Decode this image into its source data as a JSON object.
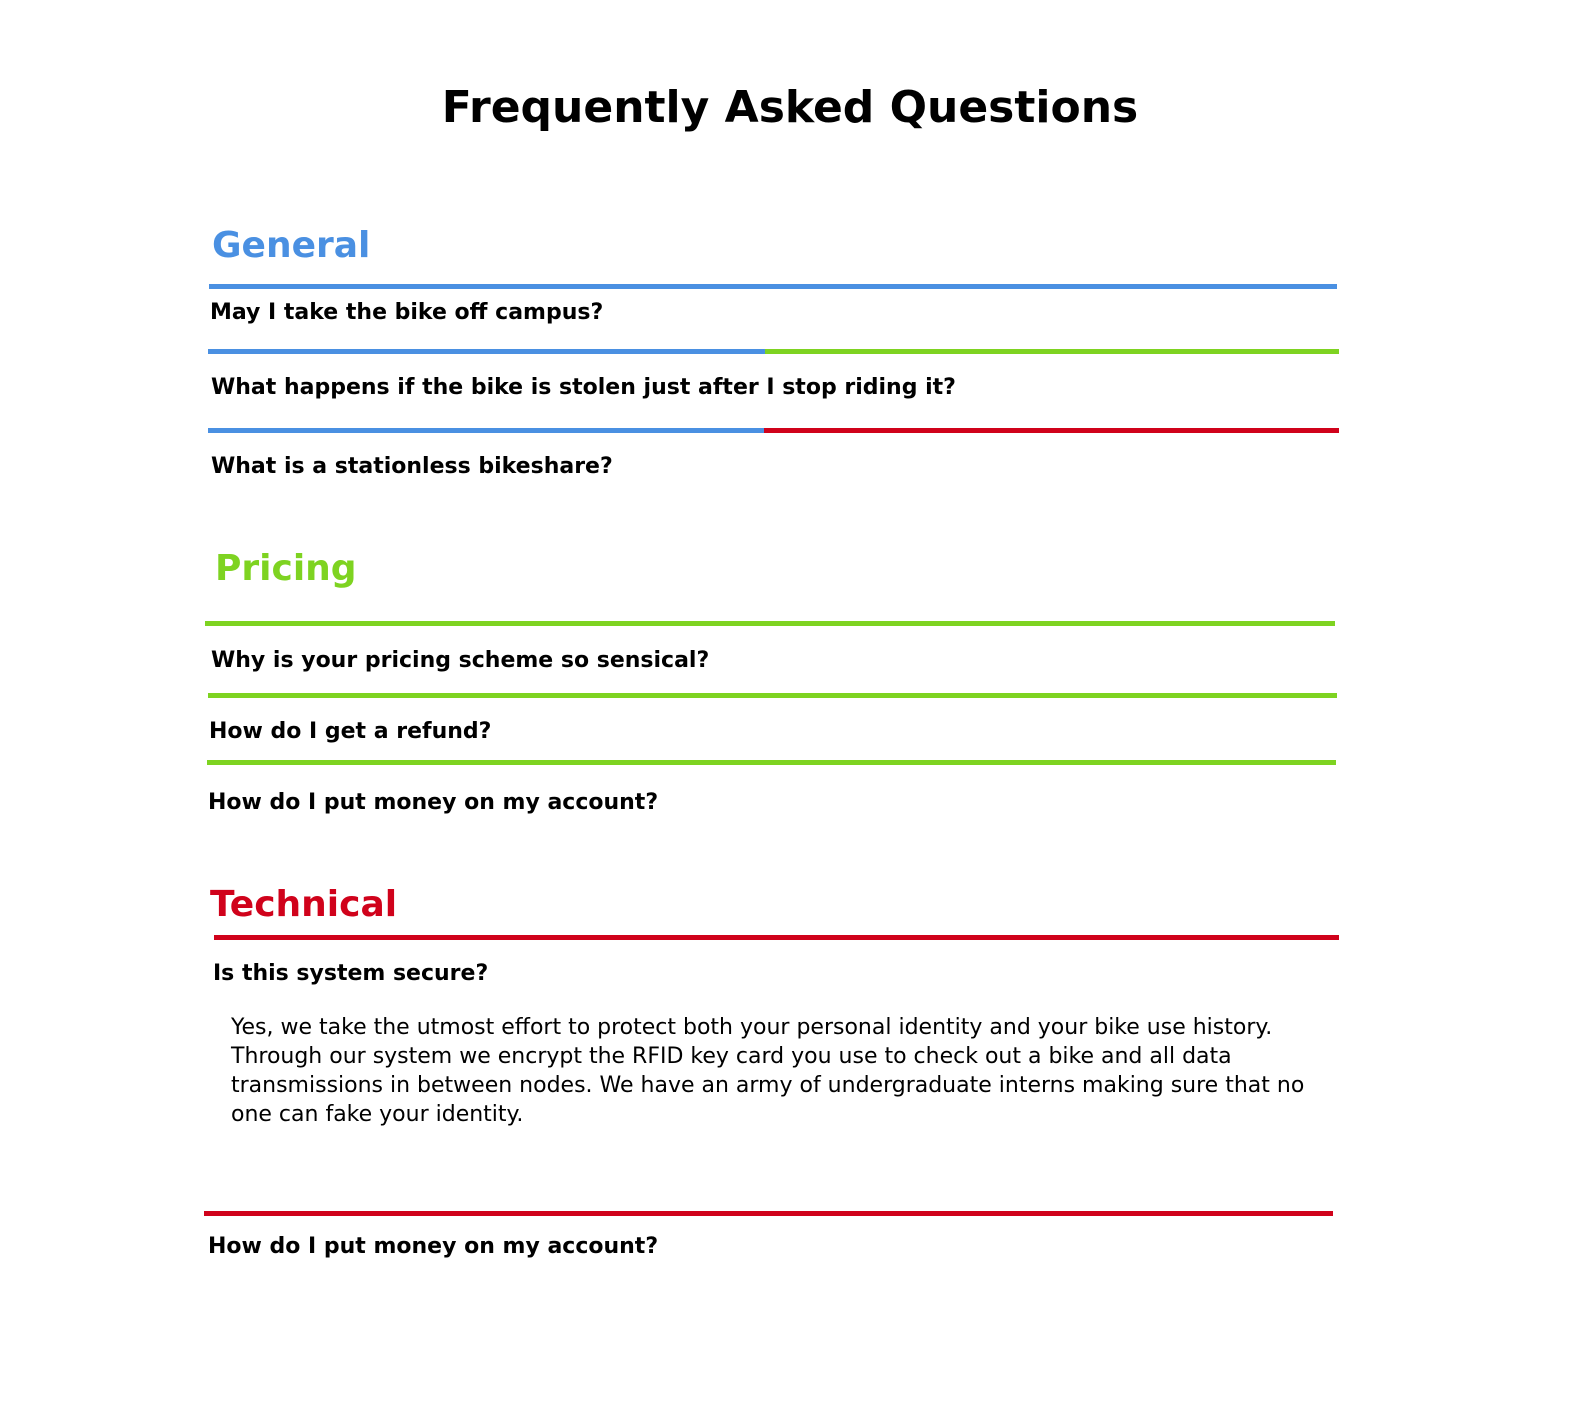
{
  "page": {
    "title": "Frequently Asked Questions"
  },
  "colors": {
    "general": "#4a90e2",
    "pricing": "#7ed321",
    "technical": "#d0021b"
  },
  "sections": {
    "general": {
      "title": "General",
      "questions": [
        "May I take the bike off campus?",
        "What happens if the bike is stolen just after I stop riding it?",
        "What is a stationless bikeshare?"
      ]
    },
    "pricing": {
      "title": "Pricing",
      "questions": [
        "Why is your pricing scheme so sensical?",
        "How do I get a refund?",
        "How do I put money on my account?"
      ]
    },
    "technical": {
      "title": "Technical",
      "questions": [
        "Is this system secure?",
        "How do I put money on my account?"
      ],
      "answer": "Yes, we take the utmost effort to protect both your personal identity and your bike use history. Through our system we encrypt the RFID key card you use to check out a bike and all data transmissions in between nodes. We have an army of undergraduate interns making sure that no one can fake your identity."
    }
  }
}
